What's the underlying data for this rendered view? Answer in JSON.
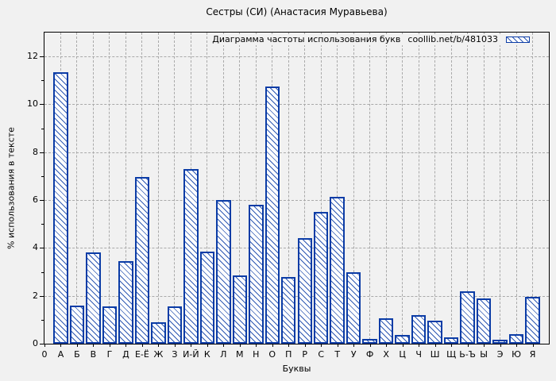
{
  "chart_data": {
    "type": "bar",
    "title": "Сестры (СИ) (Анастасия Муравьева)",
    "legend": {
      "label": "Диаграмма частоты использования букв",
      "source": "coollib.net/b/481033",
      "position": "top-right-inside"
    },
    "xlabel": "Буквы",
    "ylabel": "% использования в тексте",
    "x_origin_label": "0",
    "categories": [
      "А",
      "Б",
      "В",
      "Г",
      "Д",
      "Е-Ё",
      "Ж",
      "З",
      "И-Й",
      "К",
      "Л",
      "М",
      "Н",
      "О",
      "П",
      "Р",
      "С",
      "Т",
      "У",
      "Ф",
      "Х",
      "Ц",
      "Ч",
      "Ш",
      "Щ",
      "Ь-Ъ",
      "Ы",
      "Э",
      "Ю",
      "Я"
    ],
    "values": [
      11.35,
      1.6,
      3.8,
      1.55,
      3.45,
      6.95,
      0.9,
      1.55,
      7.3,
      3.85,
      6.0,
      2.85,
      5.8,
      10.75,
      2.8,
      4.4,
      5.5,
      6.15,
      3.0,
      0.2,
      1.05,
      0.35,
      1.2,
      0.95,
      0.25,
      2.2,
      1.9,
      0.15,
      0.4,
      1.95
    ],
    "ylim": [
      0,
      13
    ],
    "yticks": [
      0,
      2,
      4,
      6,
      8,
      10,
      12
    ],
    "grid": true,
    "colors": {
      "bar_border": "#0b3ca6",
      "bar_fill": "#ffffff",
      "hatch": "#0b3ca6",
      "grid": "#a9a9a9",
      "axis": "#000000",
      "background": "#f1f1f1",
      "text": "#000000"
    }
  }
}
